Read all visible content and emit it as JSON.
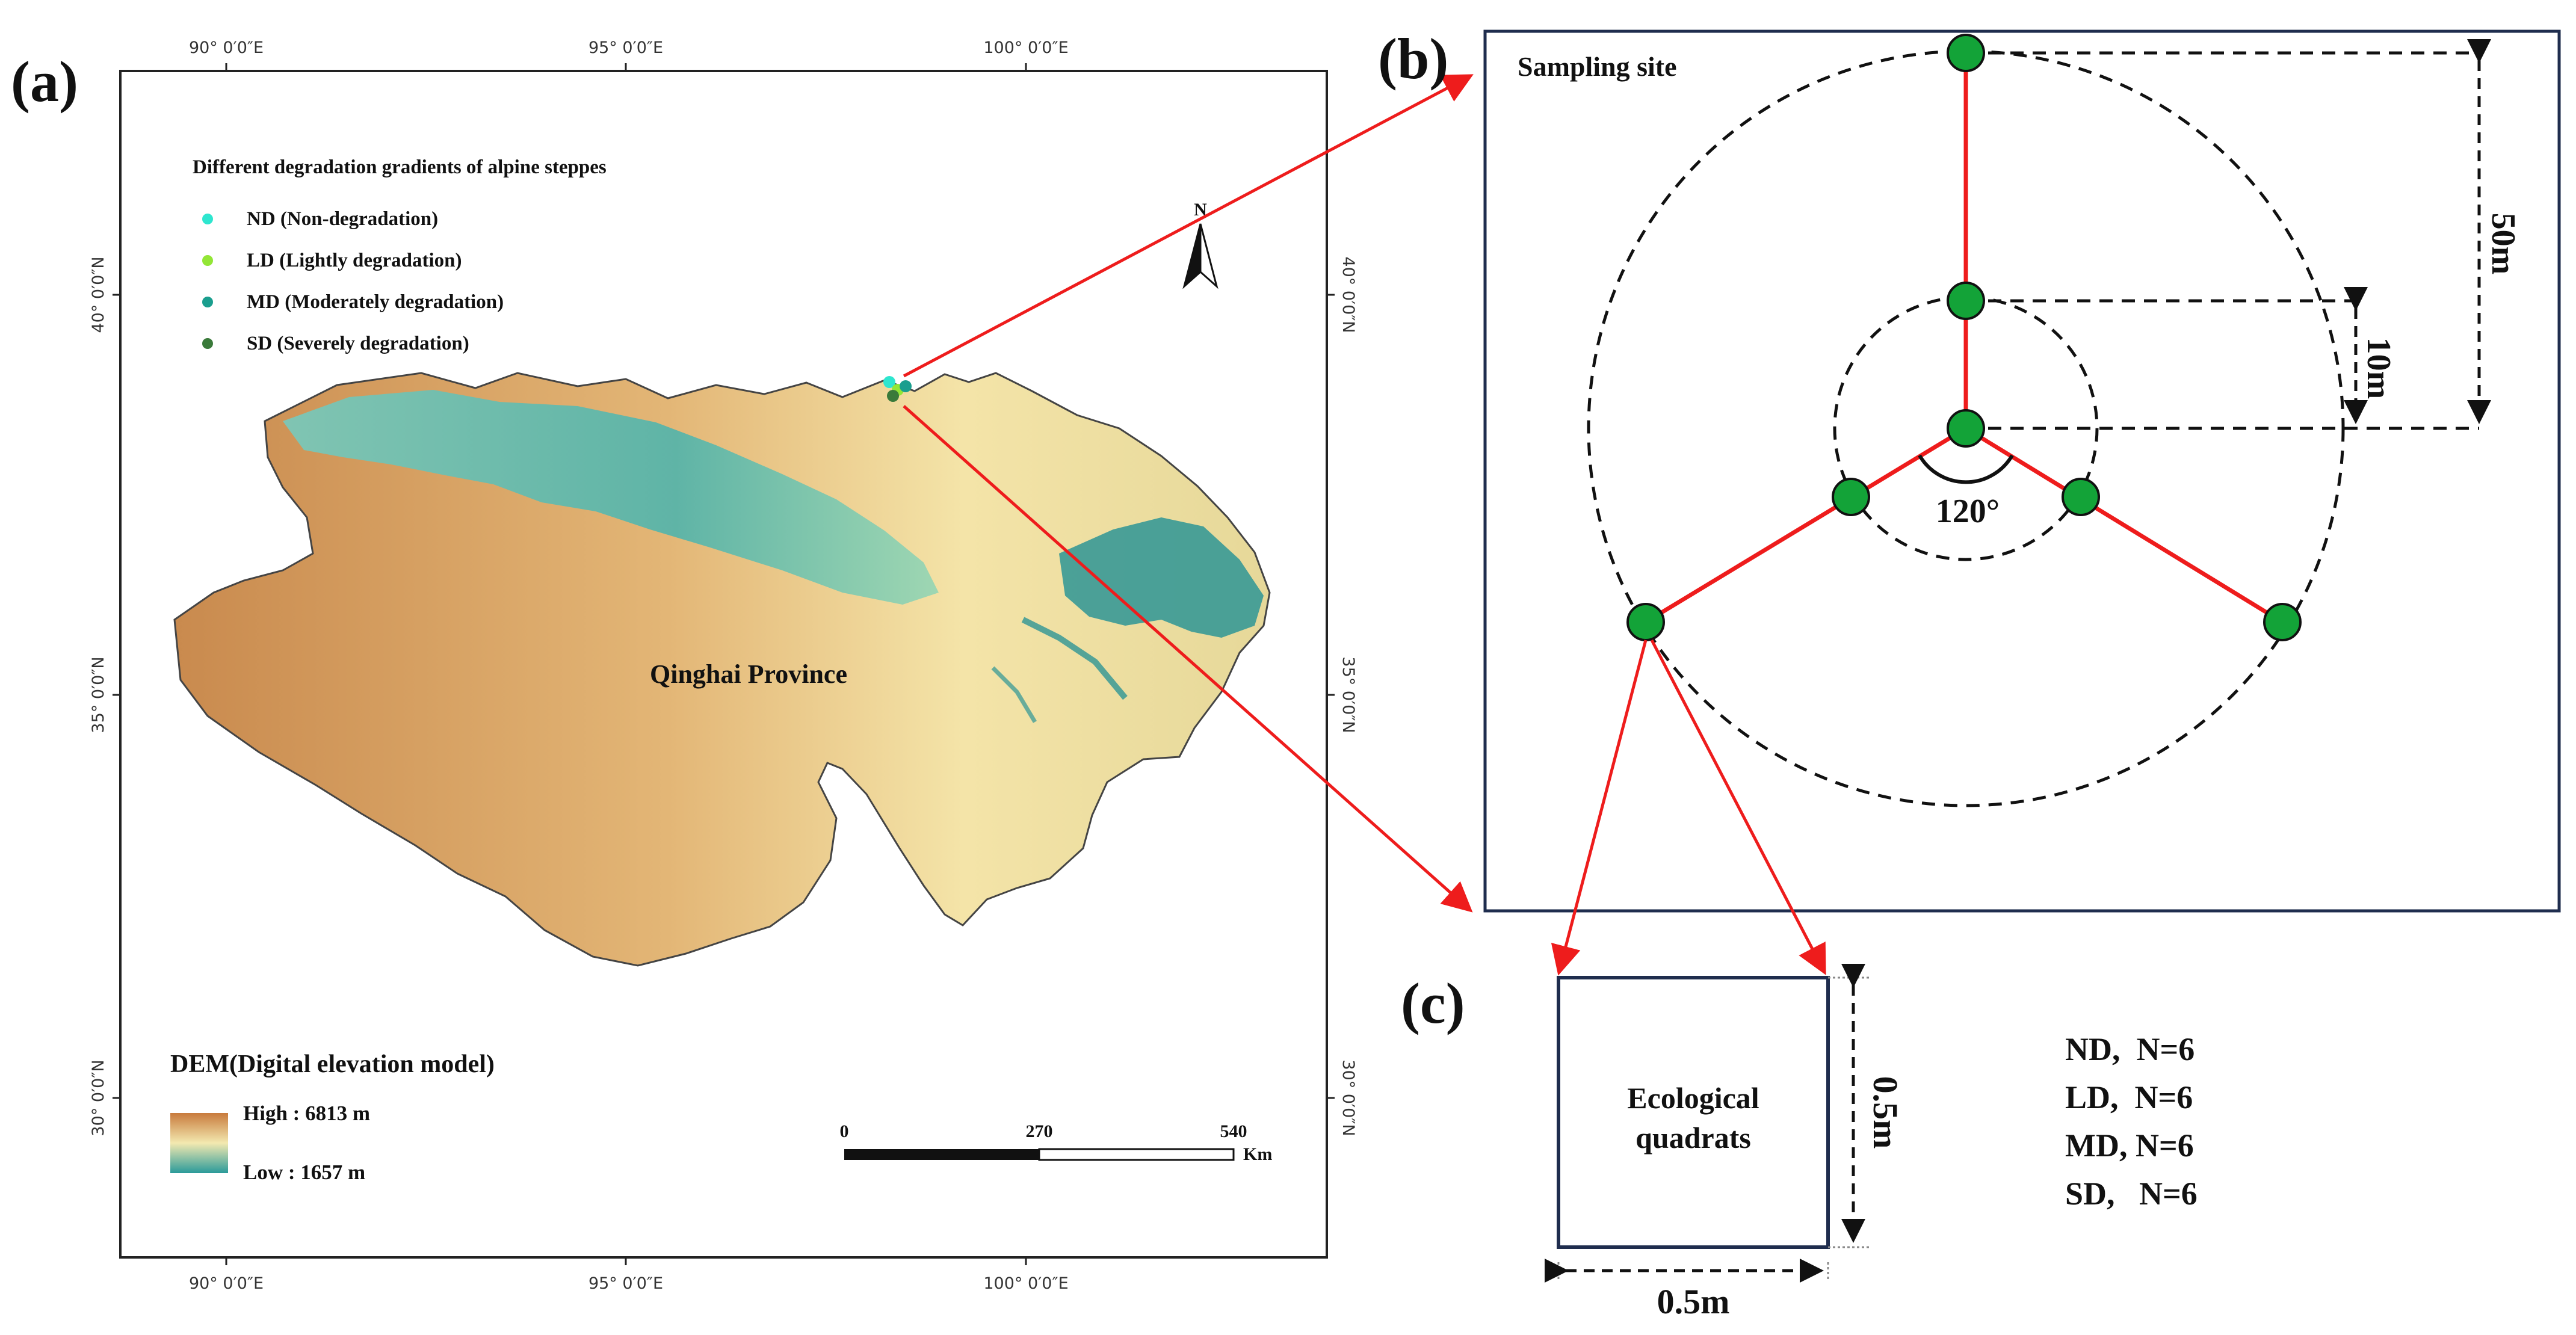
{
  "panel_a": {
    "label": "(a)",
    "coords": {
      "lon_90": "90° 0′0″E",
      "lon_95": "95° 0′0″E",
      "lon_100": "100° 0′0″E",
      "lat_40": "40° 0′0″N",
      "lat_35": "35° 0′0″N",
      "lat_30": "30° 0′0″N"
    },
    "legend_title": "Different degradation gradients of alpine steppes",
    "legend_items": [
      {
        "label": "ND (Non-degradation)",
        "color": "#2ee6cf"
      },
      {
        "label": "LD (Lightly degradation)",
        "color": "#93e636"
      },
      {
        "label": "MD (Moderately degradation)",
        "color": "#1a9e8e"
      },
      {
        "label": "SD (Severely degradation)",
        "color": "#3a7a3a"
      }
    ],
    "north": "N",
    "province": "Qinghai Province",
    "dem_title": "DEM(Digital elevation model)",
    "dem_high": "High : 6813 m",
    "dem_low": "Low : 1657 m",
    "scale": {
      "t0": "0",
      "t1": "270",
      "t2": "540",
      "unit": "Km"
    }
  },
  "panel_b": {
    "label": "(b)",
    "title": "Sampling site",
    "angle": "120°",
    "dist_inner": "10m",
    "dist_outer": "50m"
  },
  "panel_c": {
    "label": "(c)",
    "box_line1": "Ecological",
    "box_line2": "quadrats",
    "side_h": "0.5m",
    "side_v": "0.5m",
    "counts": [
      "ND,  N=6",
      "LD,  N=6",
      "MD, N=6",
      "SD,   N=6"
    ]
  },
  "colors": {
    "arrow": "#ee1c1c",
    "frame": "#1f2d4e",
    "node": "#13a338",
    "dem_high": "#c87a3c",
    "dem_low": "#2a9a9a"
  }
}
